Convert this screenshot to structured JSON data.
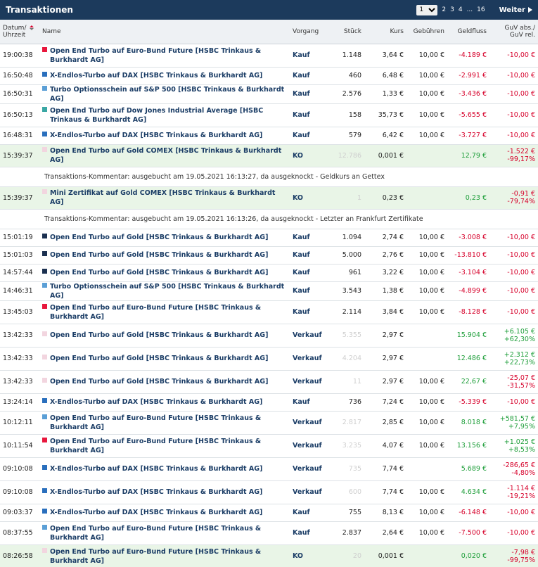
{
  "header": {
    "title": "Transaktionen",
    "page_select": "1",
    "pages": [
      "2",
      "3",
      "4",
      "...",
      "16"
    ],
    "next_label": "Weiter"
  },
  "columns": {
    "datum1": "Datum/",
    "datum2": "Uhrzeit",
    "name": "Name",
    "vorgang": "Vorgang",
    "stueck": "Stück",
    "kurs": "Kurs",
    "gebuehren": "Gebühren",
    "geldfluss": "Geldfluss",
    "guv1": "GuV abs./",
    "guv2": "GuV rel."
  },
  "colors": {
    "red": "#e8173d",
    "blue": "#2a6fbd",
    "lightblue": "#5b9fd6",
    "teal": "#3aa7a4",
    "navy": "#1b3050",
    "pink": "#f2d5df"
  },
  "rows": [
    {
      "type": "tx",
      "time": "19:00:38",
      "color": "#e8173d",
      "name": "Open End Turbo auf Euro-Bund Future [HSBC Trinkaus & Burkhardt AG]",
      "vorgang": "Kauf",
      "stueck": "1.148",
      "stueck_faint": false,
      "kurs": "3,64 €",
      "geb": "10,00 €",
      "geld": "-4.189 €",
      "geld_cls": "neg",
      "guv1": "-10,00 €",
      "guv2": "",
      "guv_cls": "neg",
      "h": 33
    },
    {
      "type": "tx",
      "time": "16:50:48",
      "color": "#2a6fbd",
      "name": "X-Endlos-Turbo auf DAX [HSBC Trinkaus & Burkhardt AG]",
      "vorgang": "Kauf",
      "stueck": "460",
      "stueck_faint": false,
      "kurs": "6,48 €",
      "geb": "10,00 €",
      "geld": "-2.991 €",
      "geld_cls": "neg",
      "guv1": "-10,00 €",
      "guv2": "",
      "guv_cls": "neg",
      "h": 25
    },
    {
      "type": "tx",
      "time": "16:50:31",
      "color": "#5b9fd6",
      "name": "Turbo Optionsschein auf S&P 500 [HSBC Trinkaus & Burkhardt AG]",
      "vorgang": "Kauf",
      "stueck": "2.576",
      "stueck_faint": false,
      "kurs": "1,33 €",
      "geb": "10,00 €",
      "geld": "-3.436 €",
      "geld_cls": "neg",
      "guv1": "-10,00 €",
      "guv2": "",
      "guv_cls": "neg",
      "h": 24
    },
    {
      "type": "tx",
      "time": "16:50:13",
      "color": "#3aa7a4",
      "name": "Open End Turbo auf Dow Jones Industrial Average [HSBC Trinkaus & Burkhardt AG]",
      "vorgang": "Kauf",
      "stueck": "158",
      "stueck_faint": false,
      "kurs": "35,73 €",
      "geb": "10,00 €",
      "geld": "-5.655 €",
      "geld_cls": "neg",
      "guv1": "-10,00 €",
      "guv2": "",
      "guv_cls": "neg",
      "h": 33
    },
    {
      "type": "tx",
      "time": "16:48:31",
      "color": "#2a6fbd",
      "name": "X-Endlos-Turbo auf DAX [HSBC Trinkaus & Burkhardt AG]",
      "vorgang": "Kauf",
      "stueck": "579",
      "stueck_faint": false,
      "kurs": "6,42 €",
      "geb": "10,00 €",
      "geld": "-3.727 €",
      "geld_cls": "neg",
      "guv1": "-10,00 €",
      "guv2": "",
      "guv_cls": "neg",
      "h": 25
    },
    {
      "type": "ko",
      "time": "15:39:37",
      "color": "#f2d5df",
      "name": "Open End Turbo auf Gold COMEX [HSBC Trinkaus & Burkhardt AG]",
      "vorgang": "KO",
      "stueck": "12.786",
      "stueck_faint": true,
      "kurs": "0,001 €",
      "geb": "",
      "geld": "12,79 €",
      "geld_cls": "pos",
      "guv1": "-1.522 €",
      "guv2": "-99,17%",
      "guv_cls": "neg",
      "h": 32
    },
    {
      "type": "cm",
      "text": "Transaktions-Kommentar: ausgebucht am 19.05.2021 16:13:27, da ausgeknockt - Geldkurs an Gettex"
    },
    {
      "type": "ko",
      "time": "15:39:37",
      "color": "#f2d5df",
      "name": "Mini Zertifikat auf Gold COMEX [HSBC Trinkaus & Burkhardt AG]",
      "vorgang": "KO",
      "stueck": "1",
      "stueck_faint": true,
      "kurs": "0,23 €",
      "geb": "",
      "geld": "0,23 €",
      "geld_cls": "pos",
      "guv1": "-0,91 €",
      "guv2": "-79,74%",
      "guv_cls": "neg",
      "h": 32
    },
    {
      "type": "cm",
      "text": "Transaktions-Kommentar: ausgebucht am 19.05.2021 16:13:26, da ausgeknockt - Letzter an Frankfurt Zertifikate"
    },
    {
      "type": "tx",
      "time": "15:01:19",
      "color": "#1b3050",
      "name": "Open End Turbo auf Gold [HSBC Trinkaus & Burkhardt AG]",
      "vorgang": "Kauf",
      "stueck": "1.094",
      "stueck_faint": false,
      "kurs": "2,74 €",
      "geb": "10,00 €",
      "geld": "-3.008 €",
      "geld_cls": "neg",
      "guv1": "-10,00 €",
      "guv2": "",
      "guv_cls": "neg",
      "h": 25
    },
    {
      "type": "tx",
      "time": "15:01:03",
      "color": "#1b3050",
      "name": "Open End Turbo auf Gold [HSBC Trinkaus & Burkhardt AG]",
      "vorgang": "Kauf",
      "stueck": "5.000",
      "stueck_faint": false,
      "kurs": "2,76 €",
      "geb": "10,00 €",
      "geld": "-13.810 €",
      "geld_cls": "neg",
      "guv1": "-10,00 €",
      "guv2": "",
      "guv_cls": "neg",
      "h": 25
    },
    {
      "type": "tx",
      "time": "14:57:44",
      "color": "#1b3050",
      "name": "Open End Turbo auf Gold [HSBC Trinkaus & Burkhardt AG]",
      "vorgang": "Kauf",
      "stueck": "961",
      "stueck_faint": false,
      "kurs": "3,22 €",
      "geb": "10,00 €",
      "geld": "-3.104 €",
      "geld_cls": "neg",
      "guv1": "-10,00 €",
      "guv2": "",
      "guv_cls": "neg",
      "h": 25
    },
    {
      "type": "tx",
      "time": "14:46:31",
      "color": "#5b9fd6",
      "name": "Turbo Optionsschein auf S&P 500 [HSBC Trinkaus & Burkhardt AG]",
      "vorgang": "Kauf",
      "stueck": "3.543",
      "stueck_faint": false,
      "kurs": "1,38 €",
      "geb": "10,00 €",
      "geld": "-4.899 €",
      "geld_cls": "neg",
      "guv1": "-10,00 €",
      "guv2": "",
      "guv_cls": "neg",
      "h": 25
    },
    {
      "type": "tx",
      "time": "13:45:03",
      "color": "#e8173d",
      "name": "Open End Turbo auf Euro-Bund Future [HSBC Trinkaus & Burkhardt AG]",
      "vorgang": "Kauf",
      "stueck": "2.114",
      "stueck_faint": false,
      "kurs": "3,84 €",
      "geb": "10,00 €",
      "geld": "-8.128 €",
      "geld_cls": "neg",
      "guv1": "-10,00 €",
      "guv2": "",
      "guv_cls": "neg",
      "h": 33
    },
    {
      "type": "tx",
      "time": "13:42:33",
      "color": "#f2d5df",
      "name": "Open End Turbo auf Gold [HSBC Trinkaus & Burkhardt AG]",
      "vorgang": "Verkauf",
      "stueck": "5.355",
      "stueck_faint": true,
      "kurs": "2,97 €",
      "geb": "",
      "geld": "15.904 €",
      "geld_cls": "pos",
      "guv1": "+6.105 €",
      "guv2": "+62,30%",
      "guv_cls": "pos",
      "h": 33
    },
    {
      "type": "tx",
      "time": "13:42:33",
      "color": "#f2d5df",
      "name": "Open End Turbo auf Gold [HSBC Trinkaus & Burkhardt AG]",
      "vorgang": "Verkauf",
      "stueck": "4.204",
      "stueck_faint": true,
      "kurs": "2,97 €",
      "geb": "",
      "geld": "12.486 €",
      "geld_cls": "pos",
      "guv1": "+2.312 €",
      "guv2": "+22,73%",
      "guv_cls": "pos",
      "h": 33
    },
    {
      "type": "tx",
      "time": "13:42:33",
      "color": "#f2d5df",
      "name": "Open End Turbo auf Gold [HSBC Trinkaus & Burkhardt AG]",
      "vorgang": "Verkauf",
      "stueck": "11",
      "stueck_faint": true,
      "kurs": "2,97 €",
      "geb": "10,00 €",
      "geld": "22,67 €",
      "geld_cls": "pos",
      "guv1": "-25,07 €",
      "guv2": "-31,57%",
      "guv_cls": "neg",
      "h": 33
    },
    {
      "type": "tx",
      "time": "13:24:14",
      "color": "#2a6fbd",
      "name": "X-Endlos-Turbo auf DAX [HSBC Trinkaus & Burkhardt AG]",
      "vorgang": "Kauf",
      "stueck": "736",
      "stueck_faint": false,
      "kurs": "7,24 €",
      "geb": "10,00 €",
      "geld": "-5.339 €",
      "geld_cls": "neg",
      "guv1": "-10,00 €",
      "guv2": "",
      "guv_cls": "neg",
      "h": 25
    },
    {
      "type": "tx",
      "time": "10:12:11",
      "color": "#5b9fd6",
      "name": "Open End Turbo auf Euro-Bund Future [HSBC Trinkaus & Burkhardt AG]",
      "vorgang": "Verkauf",
      "stueck": "2.817",
      "stueck_faint": true,
      "kurs": "2,85 €",
      "geb": "10,00 €",
      "geld": "8.018 €",
      "geld_cls": "pos",
      "guv1": "+581,57 €",
      "guv2": "+7,95%",
      "guv_cls": "pos",
      "h": 33
    },
    {
      "type": "tx",
      "time": "10:11:54",
      "color": "#e8173d",
      "name": "Open End Turbo auf Euro-Bund Future [HSBC Trinkaus & Burkhardt AG]",
      "vorgang": "Verkauf",
      "stueck": "3.235",
      "stueck_faint": true,
      "kurs": "4,07 €",
      "geb": "10,00 €",
      "geld": "13.156 €",
      "geld_cls": "pos",
      "guv1": "+1.025 €",
      "guv2": "+8,53%",
      "guv_cls": "pos",
      "h": 33
    },
    {
      "type": "tx",
      "time": "09:10:08",
      "color": "#2a6fbd",
      "name": "X-Endlos-Turbo auf DAX [HSBC Trinkaus & Burkhardt AG]",
      "vorgang": "Verkauf",
      "stueck": "735",
      "stueck_faint": true,
      "kurs": "7,74 €",
      "geb": "",
      "geld": "5.689 €",
      "geld_cls": "pos",
      "guv1": "-286,65 €",
      "guv2": "-4,80%",
      "guv_cls": "neg",
      "h": 33
    },
    {
      "type": "tx",
      "time": "09:10:08",
      "color": "#2a6fbd",
      "name": "X-Endlos-Turbo auf DAX [HSBC Trinkaus & Burkhardt AG]",
      "vorgang": "Verkauf",
      "stueck": "600",
      "stueck_faint": true,
      "kurs": "7,74 €",
      "geb": "10,00 €",
      "geld": "4.634 €",
      "geld_cls": "pos",
      "guv1": "-1.114 €",
      "guv2": "-19,21%",
      "guv_cls": "neg",
      "h": 33
    },
    {
      "type": "tx",
      "time": "09:03:37",
      "color": "#2a6fbd",
      "name": "X-Endlos-Turbo auf DAX [HSBC Trinkaus & Burkhardt AG]",
      "vorgang": "Kauf",
      "stueck": "755",
      "stueck_faint": false,
      "kurs": "8,13 €",
      "geb": "10,00 €",
      "geld": "-6.148 €",
      "geld_cls": "neg",
      "guv1": "-10,00 €",
      "guv2": "",
      "guv_cls": "neg",
      "h": 25
    },
    {
      "type": "tx",
      "time": "08:37:55",
      "color": "#5b9fd6",
      "name": "Open End Turbo auf Euro-Bund Future [HSBC Trinkaus & Burkhardt AG]",
      "vorgang": "Kauf",
      "stueck": "2.837",
      "stueck_faint": false,
      "kurs": "2,64 €",
      "geb": "10,00 €",
      "geld": "-7.500 €",
      "geld_cls": "neg",
      "guv1": "-10,00 €",
      "guv2": "",
      "guv_cls": "neg",
      "h": 33
    },
    {
      "type": "ko",
      "time": "08:26:58",
      "color": "#f2d5df",
      "name": "Open End Turbo auf Euro-Bund Future [HSBC Trinkaus & Burkhardt AG]",
      "vorgang": "KO",
      "stueck": "20",
      "stueck_faint": true,
      "kurs": "0,001 €",
      "geb": "",
      "geld": "0,020 €",
      "geld_cls": "pos",
      "guv1": "-7,98 €",
      "guv2": "-99,75%",
      "guv_cls": "neg",
      "h": 33
    }
  ]
}
